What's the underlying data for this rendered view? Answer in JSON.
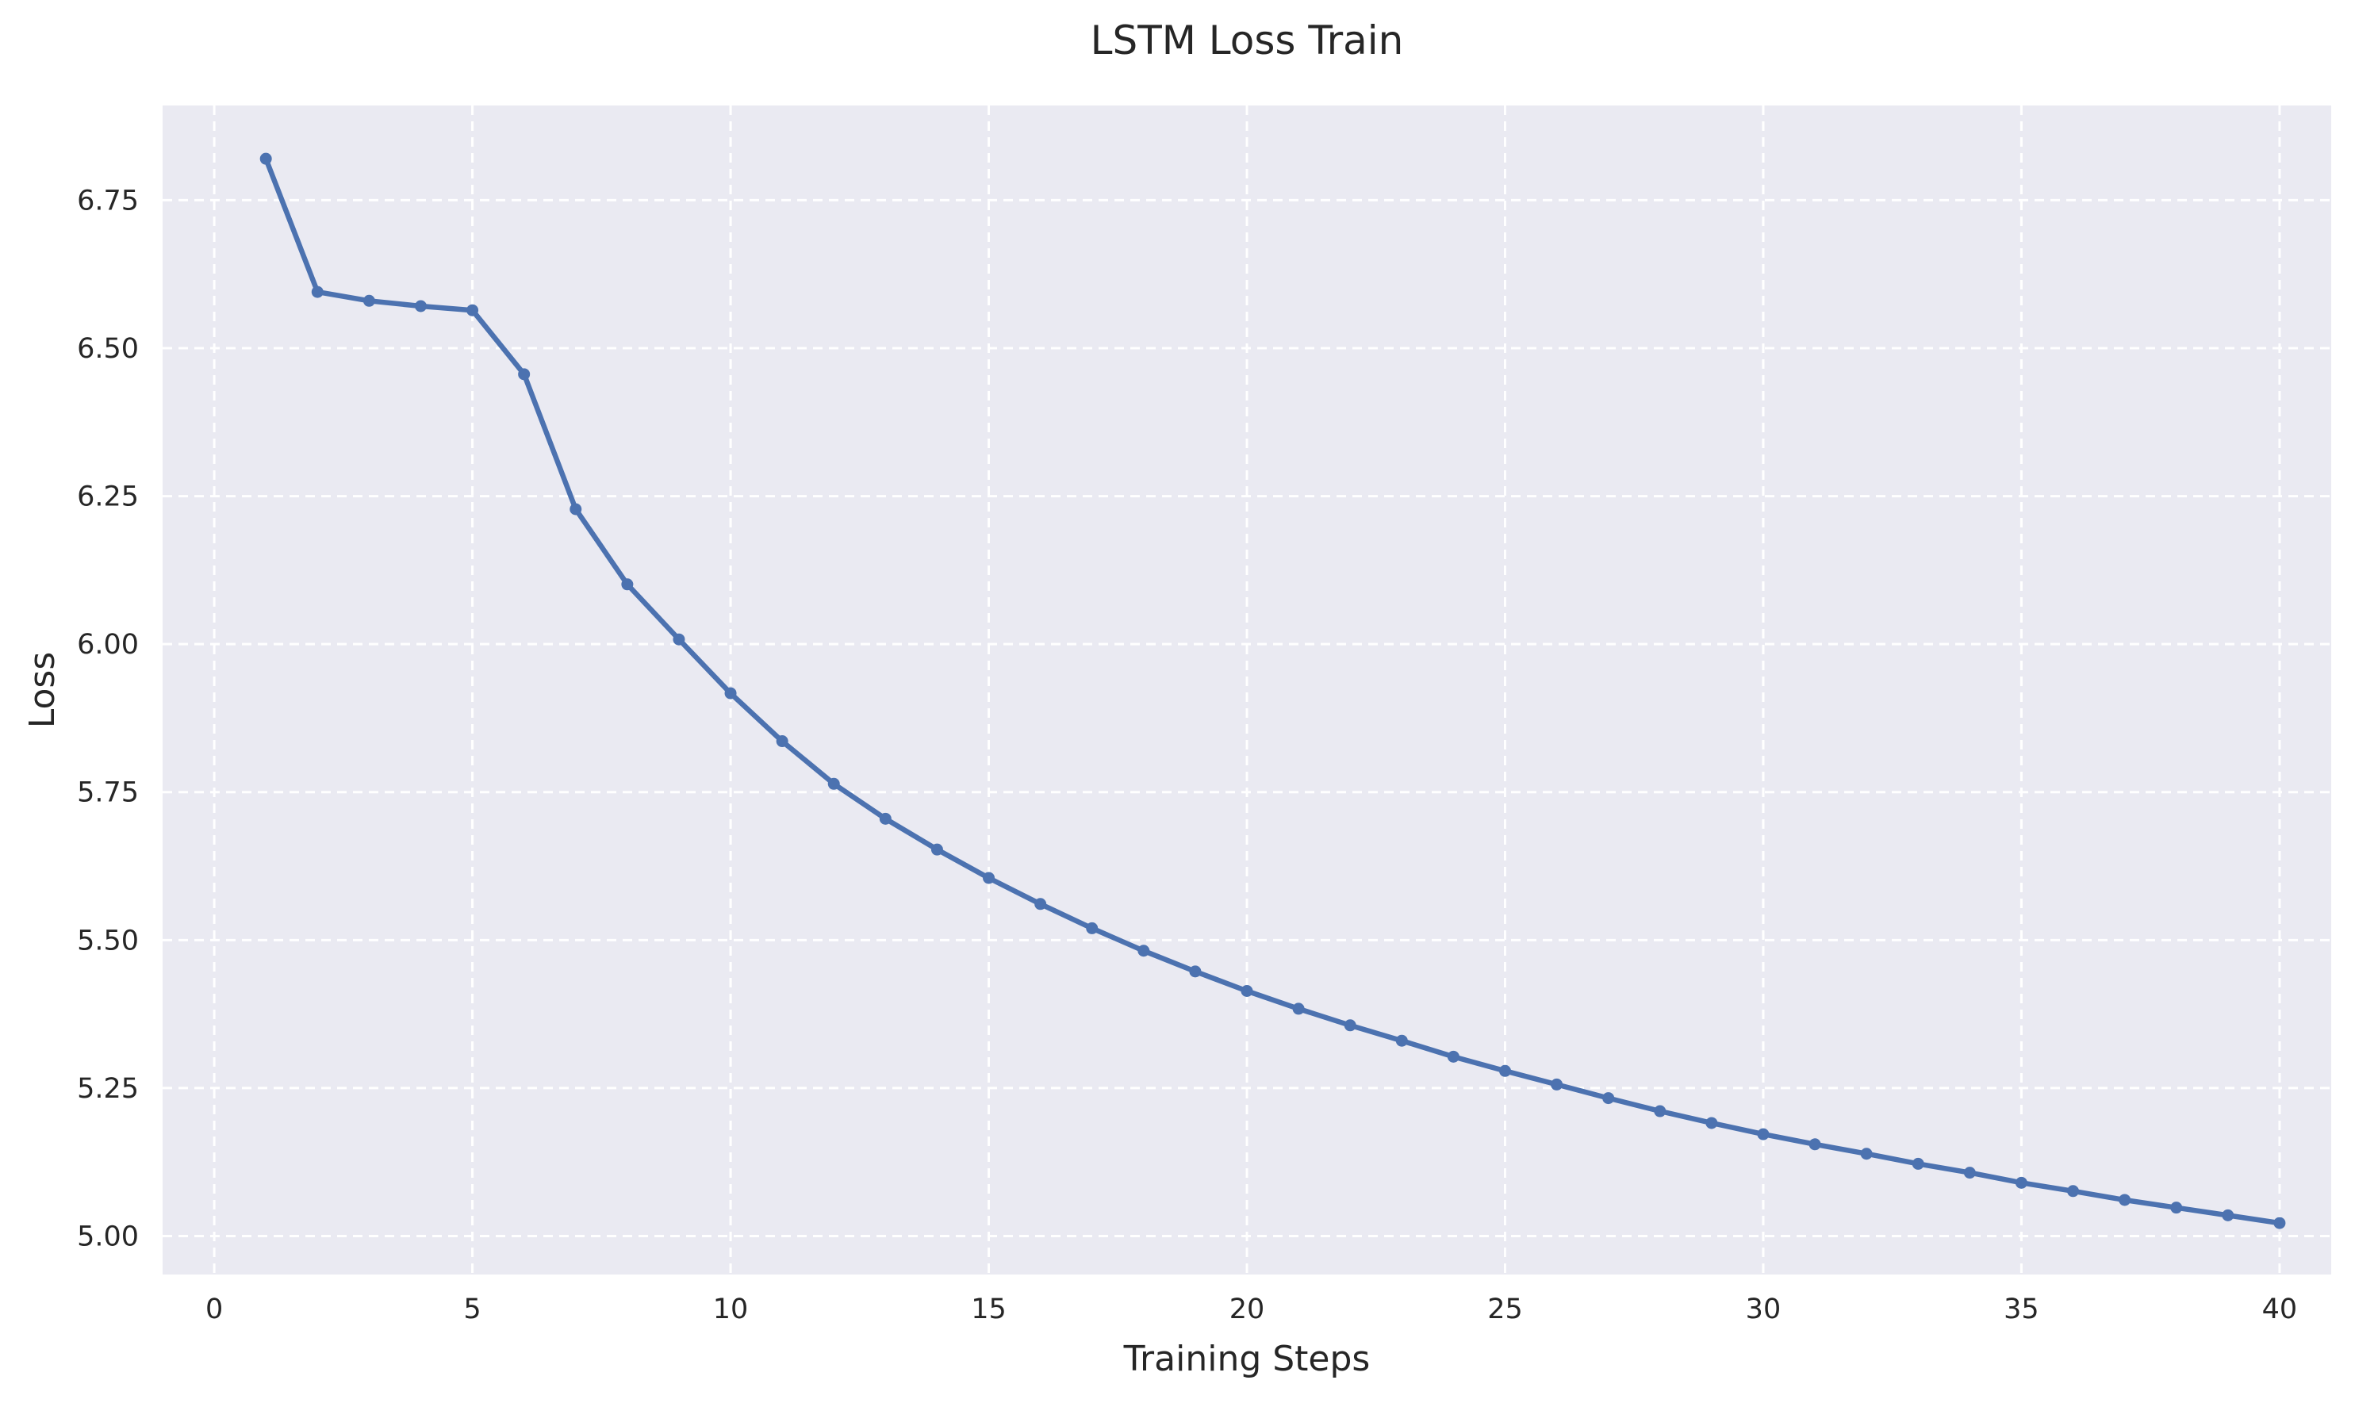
{
  "chart_data": {
    "type": "line",
    "title": "LSTM Loss Train",
    "xlabel": "Training Steps",
    "ylabel": "Loss",
    "xlim": [
      -1,
      41
    ],
    "ylim": [
      4.935,
      6.91
    ],
    "xticks": [
      0,
      5,
      10,
      15,
      20,
      25,
      30,
      35,
      40
    ],
    "yticks": [
      5.0,
      5.25,
      5.5,
      5.75,
      6.0,
      6.25,
      6.5,
      6.75
    ],
    "xtick_labels": [
      "0",
      "5",
      "10",
      "15",
      "20",
      "25",
      "30",
      "35",
      "40"
    ],
    "ytick_labels": [
      "5.00",
      "5.25",
      "5.50",
      "5.75",
      "6.00",
      "6.25",
      "6.50",
      "6.75"
    ],
    "grid": true,
    "legend": false,
    "series": [
      {
        "color": "#4c72b0",
        "marker": "circle",
        "x": [
          1,
          2,
          3,
          4,
          5,
          6,
          7,
          8,
          9,
          10,
          11,
          12,
          13,
          14,
          15,
          16,
          17,
          18,
          19,
          20,
          21,
          22,
          23,
          24,
          25,
          26,
          27,
          28,
          29,
          30,
          31,
          32,
          33,
          34,
          35,
          36,
          37,
          38,
          39,
          40
        ],
        "y": [
          6.82,
          6.595,
          6.58,
          6.571,
          6.564,
          6.456,
          6.228,
          6.101,
          6.008,
          5.917,
          5.836,
          5.764,
          5.705,
          5.653,
          5.605,
          5.561,
          5.52,
          5.482,
          5.447,
          5.414,
          5.384,
          5.356,
          5.33,
          5.303,
          5.279,
          5.256,
          5.233,
          5.211,
          5.191,
          5.172,
          5.155,
          5.139,
          5.122,
          5.107,
          5.09,
          5.076,
          5.061,
          5.048,
          5.035,
          5.022
        ]
      }
    ]
  },
  "colors": {
    "plot_background": "#eaeaf2",
    "grid": "#ffffff",
    "line": "#4c72b0"
  }
}
